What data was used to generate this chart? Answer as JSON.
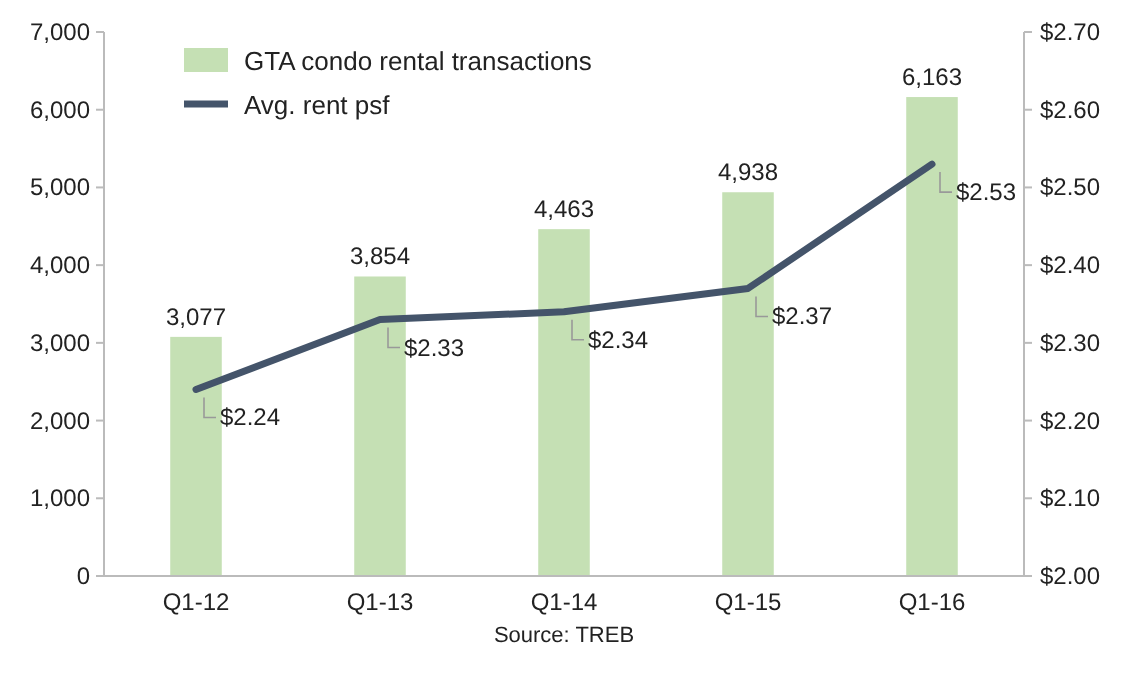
{
  "chart_data": {
    "type": "bar",
    "categories": [
      "Q1-12",
      "Q1-13",
      "Q1-14",
      "Q1-15",
      "Q1-16"
    ],
    "series": [
      {
        "name": "GTA condo rental transactions",
        "color": "#c5e0b4",
        "values": [
          3077,
          3854,
          4463,
          4938,
          6163
        ],
        "value_labels": [
          "3,077",
          "3,854",
          "4,463",
          "4,938",
          "6,163"
        ]
      },
      {
        "name": "Avg. rent psf",
        "type": "line",
        "axis": "y2",
        "color": "#44546a",
        "values": [
          2.24,
          2.33,
          2.34,
          2.37,
          2.53
        ],
        "value_labels": [
          "$2.24",
          "$2.33",
          "$2.34",
          "$2.37",
          "$2.53"
        ]
      }
    ],
    "ylim": [
      0,
      7000
    ],
    "yticks": [
      0,
      {
        "value": 1000,
        "label": "1,000"
      },
      {
        "value": 2000,
        "label": "2,000"
      },
      {
        "value": 3000,
        "label": "3,000"
      },
      {
        "value": 4000,
        "label": "4,000"
      },
      {
        "value": 5000,
        "label": "5,000"
      },
      {
        "value": 6000,
        "label": "6,000"
      },
      {
        "value": 7000,
        "label": "7,000"
      }
    ],
    "y2lim": [
      2.0,
      2.7
    ],
    "y2ticks": [
      {
        "value": 2.0,
        "label": "$2.00"
      },
      {
        "value": 2.1,
        "label": "$2.10"
      },
      {
        "value": 2.2,
        "label": "$2.20"
      },
      {
        "value": 2.3,
        "label": "$2.30"
      },
      {
        "value": 2.4,
        "label": "$2.40"
      },
      {
        "value": 2.5,
        "label": "$2.50"
      },
      {
        "value": 2.6,
        "label": "$2.60"
      },
      {
        "value": 2.7,
        "label": "$2.70"
      }
    ],
    "legend": "top left",
    "line_style": "solid",
    "marker": "none",
    "annotations": [
      "Source: TREB"
    ]
  }
}
